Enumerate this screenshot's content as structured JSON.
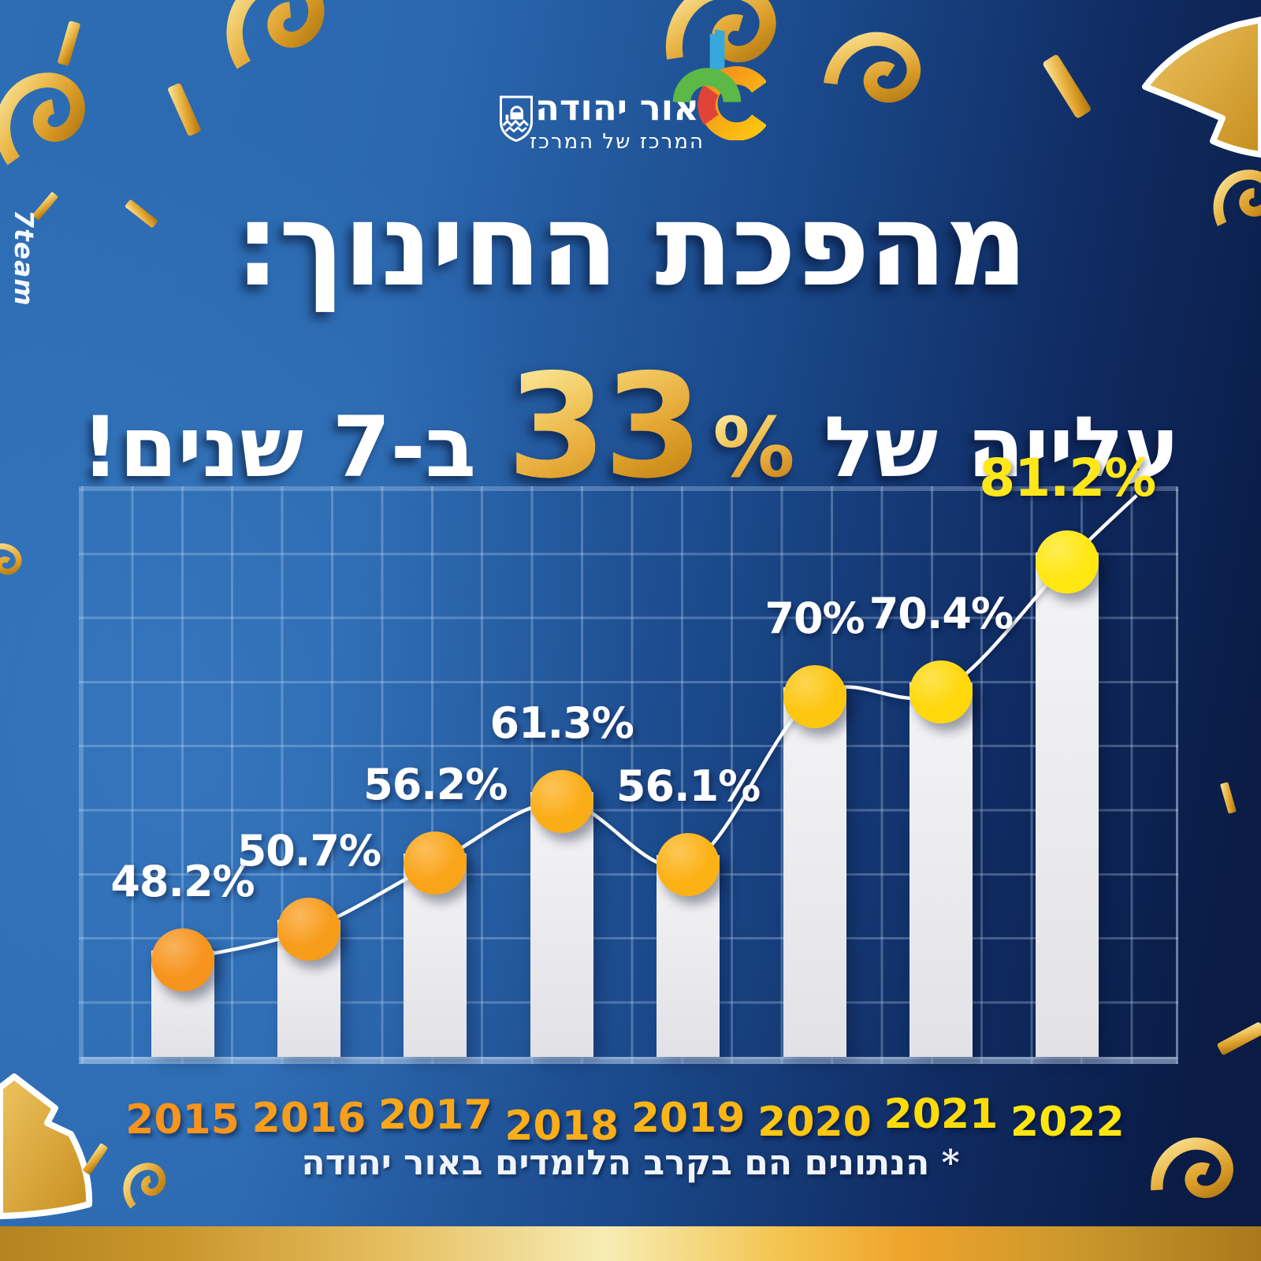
{
  "watermark": "7team",
  "header": {
    "city_name": "אור יהודה",
    "city_tagline": "המרכז של המרכז",
    "emblem_icon": "city-crest-icon",
    "logomark_icon": "or-yehuda-colorful-logomark"
  },
  "title": {
    "line1": "מהפכת החינוך:",
    "line2_prefix": "עלייה של",
    "line2_number": "33",
    "line2_percent": "%",
    "line2_suffix": "ב-7 שנים!"
  },
  "footnote": "* הנתונים הם בקרב הלומדים באור יהודה",
  "palette": {
    "bg-light": "#2D6DB3",
    "bg-mid": "#1B4A8C",
    "bg-dark": "#0A1B45",
    "grid-line": "rgba(197,218,243,0.30)",
    "axis-line": "rgba(197,218,243,0.52)",
    "bar-fill-top": "#F4F4F6",
    "bar-fill-bottom": "#E2E2E6",
    "trend-line": "#FFFFFF",
    "gold-mid": "#E8AC3C",
    "gold-deep": "#B97712",
    "highlight-yellow": "#FFE71A",
    "strip-cream": "#F7ECB4"
  },
  "chart_data": {
    "type": "bar",
    "categories": [
      "2015",
      "2016",
      "2017",
      "2018",
      "2019",
      "2020",
      "2021",
      "2022"
    ],
    "values": [
      48.2,
      50.7,
      56.2,
      61.3,
      56.1,
      70,
      70.4,
      81.2
    ],
    "value_labels": [
      "48.2%",
      "50.7%",
      "56.2%",
      "61.3%",
      "56.1%",
      "70%",
      "70.4%",
      "81.2%"
    ],
    "ylim": [
      39.3,
      87.2
    ],
    "y_axis_labeled": false,
    "grid": true,
    "overlay_line": true,
    "points": [
      {
        "year": "2015",
        "value": 48.2,
        "label": "48.2%",
        "label_color": "#FFFFFF",
        "label_size": 54,
        "dot_color": "#F7941E",
        "year_color": "#F7941E",
        "year_dy": 0
      },
      {
        "year": "2016",
        "value": 50.7,
        "label": "50.7%",
        "label_color": "#FFFFFF",
        "label_size": 54,
        "dot_color": "#F89C1B",
        "year_color": "#F89E1B",
        "year_dy": -2
      },
      {
        "year": "2017",
        "value": 56.2,
        "label": "56.2%",
        "label_color": "#FFFFFF",
        "label_size": 54,
        "dot_color": "#FAA519",
        "year_color": "#FAA819",
        "year_dy": -6
      },
      {
        "year": "2018",
        "value": 61.3,
        "label": "61.3%",
        "label_color": "#FFFFFF",
        "label_size": 54,
        "dot_color": "#FBAD17",
        "year_color": "#FBAE17",
        "year_dy": 8
      },
      {
        "year": "2019",
        "value": 56.1,
        "label": "56.1%",
        "label_color": "#FFFFFF",
        "label_size": 54,
        "dot_color": "#FCB215",
        "year_color": "#FCB515",
        "year_dy": -2
      },
      {
        "year": "2020",
        "value": 70,
        "label": "70%",
        "label_color": "#FFFFFF",
        "label_size": 54,
        "dot_color": "#FDC60F",
        "year_color": "#FDC60F",
        "year_dy": 3
      },
      {
        "year": "2021",
        "value": 70.4,
        "label": "70.4%",
        "label_color": "#FFFFFF",
        "label_size": 54,
        "dot_color": "#FED80A",
        "year_color": "#FEDC08",
        "year_dy": -7
      },
      {
        "year": "2022",
        "value": 81.2,
        "label": "81.2%",
        "label_color": "#FFE71A",
        "label_size": 66,
        "dot_color": "#FFE712",
        "year_color": "#FFE70E",
        "year_dy": 3
      }
    ]
  }
}
